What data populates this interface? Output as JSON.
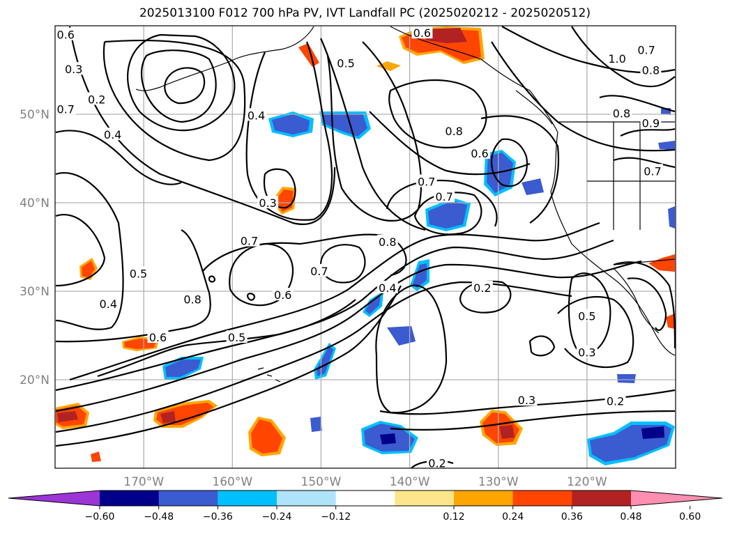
{
  "title": "2025013100 F012 700 hPa PV, IVT Landfall PC (2025020212 - 2025020512)",
  "map": {
    "projection": "PlateCarree",
    "lon_range": [
      -180,
      -110
    ],
    "lat_range": [
      10,
      60
    ],
    "lat_ticks": [
      {
        "lat": 20,
        "label": "20°N"
      },
      {
        "lat": 30,
        "label": "30°N"
      },
      {
        "lat": 40,
        "label": "40°N"
      },
      {
        "lat": 50,
        "label": "50°N"
      }
    ],
    "lon_ticks": [
      {
        "lon": -170,
        "label": "170°W"
      },
      {
        "lon": -160,
        "label": "160°W"
      },
      {
        "lon": -150,
        "label": "150°W"
      },
      {
        "lon": -140,
        "label": "140°W"
      },
      {
        "lon": -130,
        "label": "130°W"
      },
      {
        "lon": -120,
        "label": "120°W"
      }
    ],
    "gridlines": true,
    "contour_color": "#000000",
    "contour_labels": [
      {
        "text": "0.6",
        "lon": -178.8,
        "lat": 59.0
      },
      {
        "text": "0.3",
        "lon": -177.9,
        "lat": 55.1
      },
      {
        "text": "0.2",
        "lon": -175.3,
        "lat": 51.7
      },
      {
        "text": "0.7",
        "lon": -178.8,
        "lat": 50.6
      },
      {
        "text": "0.4",
        "lon": -173.5,
        "lat": 47.7
      },
      {
        "text": "0.4",
        "lon": -157.3,
        "lat": 49.9
      },
      {
        "text": "0.3",
        "lon": -156.0,
        "lat": 40.0
      },
      {
        "text": "0.5",
        "lon": -147.2,
        "lat": 55.8
      },
      {
        "text": "0.6",
        "lon": -138.6,
        "lat": 59.2
      },
      {
        "text": "0.8",
        "lon": -135.0,
        "lat": 48.1
      },
      {
        "text": "0.7",
        "lon": -138.1,
        "lat": 42.4
      },
      {
        "text": "0.7",
        "lon": -136.1,
        "lat": 40.7
      },
      {
        "text": "0.6",
        "lon": -132.1,
        "lat": 45.6
      },
      {
        "text": "1.0",
        "lon": -116.6,
        "lat": 56.3
      },
      {
        "text": "0.7",
        "lon": -113.3,
        "lat": 57.3
      },
      {
        "text": "0.8",
        "lon": -112.8,
        "lat": 55.0
      },
      {
        "text": "0.8",
        "lon": -116.1,
        "lat": 50.1
      },
      {
        "text": "0.9",
        "lon": -112.8,
        "lat": 49.0
      },
      {
        "text": "0.7",
        "lon": -112.6,
        "lat": 43.6
      },
      {
        "text": "0.7",
        "lon": -158.1,
        "lat": 35.7
      },
      {
        "text": "0.8",
        "lon": -142.5,
        "lat": 35.6
      },
      {
        "text": "0.7",
        "lon": -150.2,
        "lat": 32.3
      },
      {
        "text": "0.5",
        "lon": -170.6,
        "lat": 32.0
      },
      {
        "text": "0.8",
        "lon": -164.5,
        "lat": 29.1
      },
      {
        "text": "0.6",
        "lon": -154.3,
        "lat": 29.6
      },
      {
        "text": "0.4",
        "lon": -142.5,
        "lat": 30.4
      },
      {
        "text": "0.4",
        "lon": -174.0,
        "lat": 28.6
      },
      {
        "text": "0.2",
        "lon": -131.8,
        "lat": 30.4
      },
      {
        "text": "0.5",
        "lon": -120.0,
        "lat": 27.2
      },
      {
        "text": "0.6",
        "lon": -168.4,
        "lat": 24.8
      },
      {
        "text": "0.5",
        "lon": -159.5,
        "lat": 24.8
      },
      {
        "text": "0.3",
        "lon": -120.0,
        "lat": 23.1
      },
      {
        "text": "0.3",
        "lon": -126.8,
        "lat": 17.7
      },
      {
        "text": "0.2",
        "lon": -116.8,
        "lat": 17.6
      },
      {
        "text": "0.2",
        "lon": -136.9,
        "lat": 10.6
      }
    ]
  },
  "colorbar": {
    "ticks": [
      "−0.60",
      "−0.48",
      "−0.36",
      "−0.24",
      "−0.12",
      "0.12",
      "0.24",
      "0.36",
      "0.48",
      "0.60"
    ],
    "colors": [
      "#9b35d6",
      "#00008b",
      "#3b5bd0",
      "#00bfff",
      "#aee4fa",
      "#ffffff",
      "#fde68a",
      "#ffa500",
      "#ff4500",
      "#b22222",
      "#ff8fb0"
    ],
    "extend": "both"
  },
  "colors": {
    "neg_light": "#aee4fa",
    "neg_cyan": "#00bfff",
    "neg_blue": "#3b5bd0",
    "neg_navy": "#00008b",
    "pos_yellow": "#fde68a",
    "pos_orange": "#ffa500",
    "pos_red": "#ff4500",
    "pos_dark": "#b22222",
    "pos_pink": "#ff8fb0",
    "gridline": "#b0b0b0"
  }
}
